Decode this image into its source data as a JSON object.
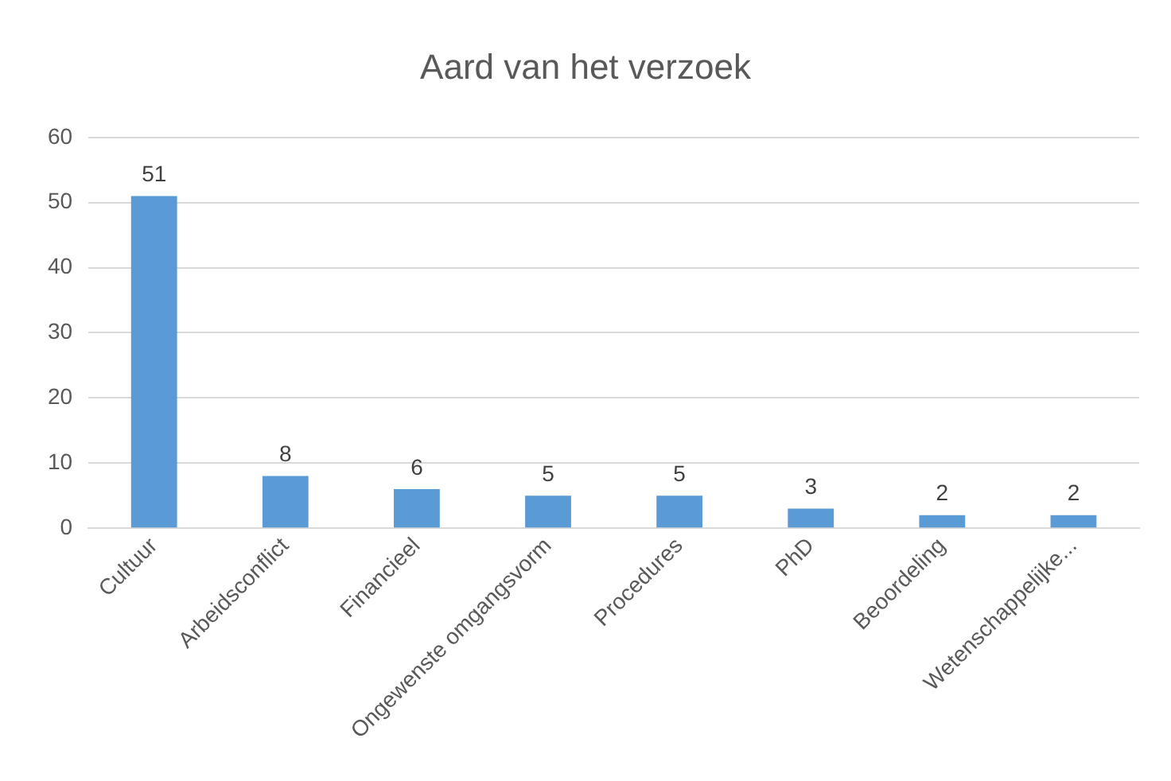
{
  "chart_data": {
    "type": "bar",
    "title": "Aard van het verzoek",
    "categories": [
      "Cultuur",
      "Arbeidsconflict",
      "Financieel",
      "Ongewenste omgangsvorm",
      "Procedures",
      "PhD",
      "Beoordeling",
      "Wetenschappelijke..."
    ],
    "values": [
      51,
      8,
      6,
      5,
      5,
      3,
      2,
      2
    ],
    "color": "#5b9bd5",
    "ylim": [
      0,
      60
    ],
    "yticks": [
      0,
      10,
      20,
      30,
      40,
      50,
      60
    ],
    "grid": "y",
    "data_labels": true,
    "legend": false
  }
}
